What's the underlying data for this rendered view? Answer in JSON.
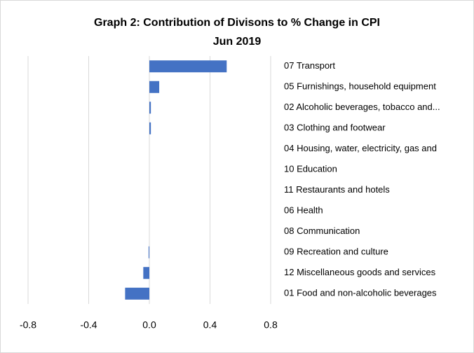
{
  "chart_data": {
    "type": "hbar",
    "title": "Graph 2: Contribution of Divisons to % Change in CPI",
    "subtitle": "Jun 2019",
    "categories": [
      "07 Transport",
      "05 Furnishings, household equipment",
      "02 Alcoholic beverages, tobacco and...",
      "03 Clothing and footwear",
      "04 Housing, water, electricity, gas and",
      "10 Education",
      "11 Restaurants and hotels",
      "06 Health",
      "08 Communication",
      "09 Recreation and culture",
      "12 Miscellaneous goods and services",
      "01 Food and non-alcoholic beverages"
    ],
    "values": [
      0.51,
      0.065,
      0.01,
      0.01,
      0,
      0,
      0,
      0,
      0,
      -0.005,
      -0.04,
      -0.16
    ],
    "color": "#4472c4",
    "xlim": [
      -0.8,
      0.8
    ],
    "xticks": [
      -0.8,
      -0.4,
      {
        "value": 0,
        "label": "0.0"
      },
      0.4,
      0.8
    ],
    "grid": true
  }
}
